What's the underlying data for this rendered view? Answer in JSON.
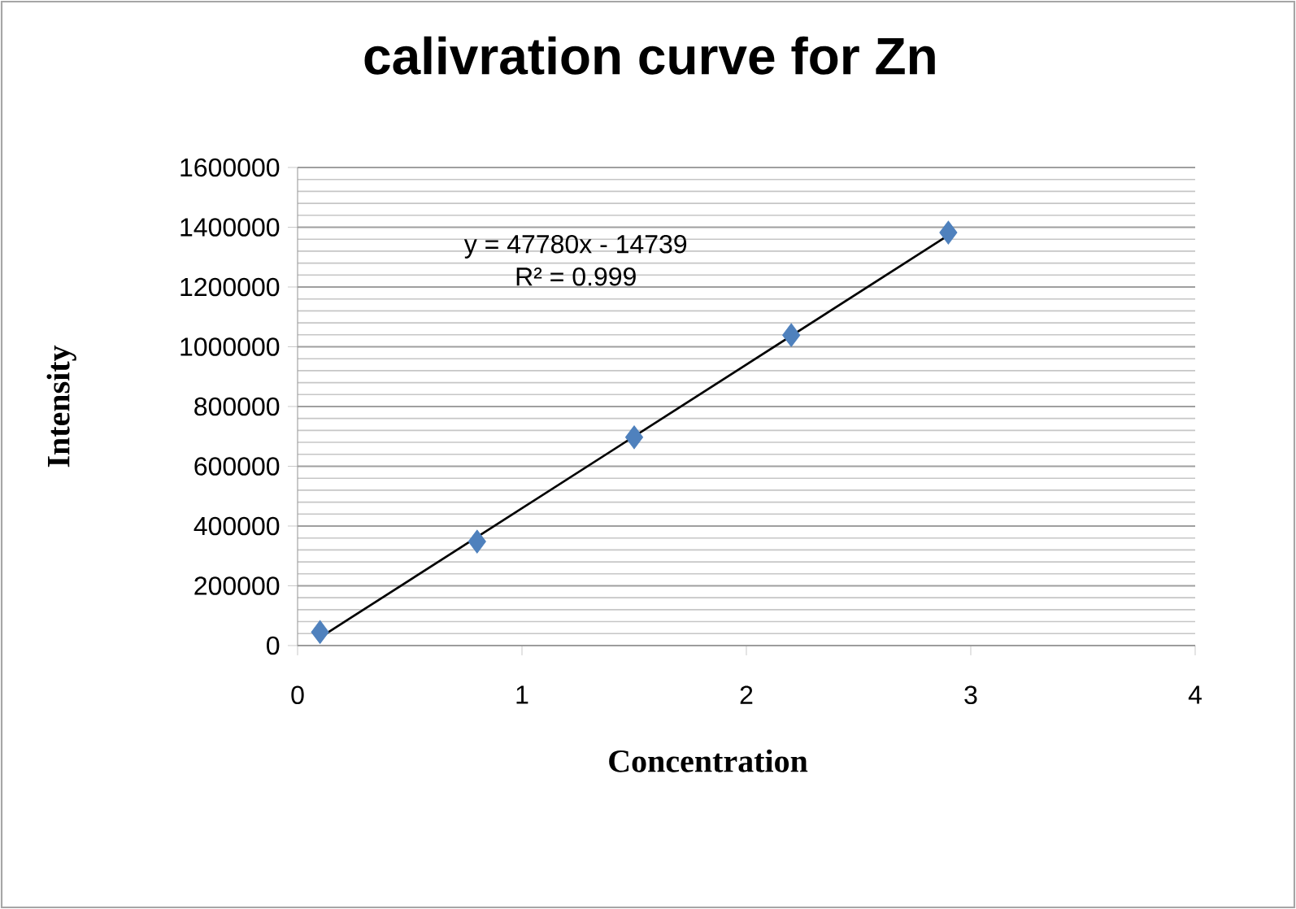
{
  "chart_data": {
    "type": "scatter",
    "title": "calivration curve for Zn",
    "xlabel": "Concentration",
    "ylabel": "Intensity",
    "xlim": [
      0,
      4
    ],
    "xticks": [
      0,
      1,
      2,
      3,
      4
    ],
    "ylim": [
      0,
      1600000
    ],
    "yticks": [
      0,
      200000,
      400000,
      600000,
      800000,
      1000000,
      1200000,
      1400000,
      1600000
    ],
    "grid": "y",
    "marker": "diamond",
    "series": [
      {
        "color": "#4f81bd",
        "x": [
          0.1,
          0.8,
          1.5,
          2.2,
          2.9
        ],
        "values": [
          45000,
          348000,
          697000,
          1039000,
          1382000
        ]
      },
      {
        "type": "line",
        "marker": "none",
        "color": "#000000",
        "x": [
          0.1,
          2.9
        ],
        "values": [
          27000,
          1373000
        ]
      }
    ],
    "annotations": [
      "y = 47780x - 14739",
      "R² = 0.999"
    ]
  }
}
